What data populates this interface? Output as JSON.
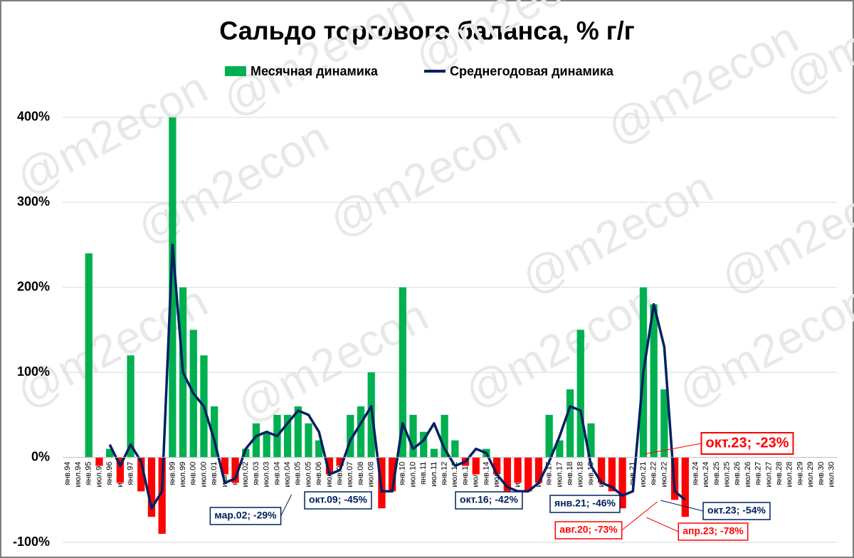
{
  "chart_data": {
    "type": "bar_line",
    "title": "Сальдо торгового баланса, % г/г",
    "watermark": "@m2econ",
    "categories": [
      "янв.94",
      "июл.94",
      "янв.95",
      "июл.95",
      "янв.96",
      "июл.96",
      "янв.97",
      "июл.97",
      "янв.98",
      "июл.98",
      "янв.99",
      "июл.99",
      "янв.00",
      "июл.00",
      "янв.01",
      "июл.01",
      "янв.02",
      "июл.02",
      "янв.03",
      "июл.03",
      "янв.04",
      "июл.04",
      "янв.05",
      "июл.05",
      "янв.06",
      "июл.06",
      "янв.07",
      "июл.07",
      "янв.08",
      "июл.08",
      "янв.09",
      "июл.09",
      "янв.10",
      "июл.10",
      "янв.11",
      "июл.11",
      "янв.12",
      "июл.12",
      "янв.13",
      "июл.13",
      "янв.14",
      "июл.14",
      "янв.15",
      "июл.15",
      "янв.16",
      "июл.16",
      "янв.17",
      "июл.17",
      "янв.18",
      "июл.18",
      "янв.19",
      "июл.19",
      "янв.20",
      "июл.20",
      "янв.21",
      "июл.21",
      "янв.22",
      "июл.22",
      "янв.23",
      "июл.23",
      "янв.24",
      "июл.24",
      "янв.25",
      "июл.25",
      "янв.26",
      "июл.26",
      "янв.27",
      "июл.27",
      "янв.28",
      "июл.28",
      "янв.29",
      "июл.29",
      "янв.30",
      "июл.30"
    ],
    "series": [
      {
        "name": "Месячная динамика",
        "kind": "bar",
        "color": "#00b050",
        "negative_color": "#ff0000",
        "values": [
          null,
          null,
          240,
          -10,
          10,
          -30,
          120,
          -40,
          -70,
          -90,
          400,
          200,
          150,
          120,
          60,
          -20,
          -30,
          10,
          40,
          30,
          50,
          50,
          60,
          40,
          20,
          -20,
          -10,
          50,
          60,
          100,
          -60,
          -40,
          200,
          50,
          30,
          10,
          50,
          20,
          -10,
          -20,
          10,
          -20,
          -40,
          -30,
          -40,
          -30,
          50,
          20,
          80,
          150,
          40,
          -30,
          -40,
          -60,
          0,
          200,
          180,
          80,
          -50,
          -70,
          null,
          null,
          null,
          null,
          null,
          null,
          null,
          null,
          null,
          null,
          null,
          null,
          null,
          null
        ]
      },
      {
        "name": "Среднегодовая динамика",
        "kind": "line",
        "color": "#002060",
        "values": [
          null,
          null,
          null,
          null,
          15,
          -10,
          15,
          -5,
          -60,
          -40,
          250,
          100,
          75,
          60,
          20,
          -30,
          -25,
          10,
          25,
          30,
          25,
          40,
          55,
          50,
          30,
          -20,
          -15,
          20,
          40,
          60,
          -40,
          -40,
          40,
          10,
          20,
          40,
          10,
          -10,
          -5,
          10,
          5,
          -20,
          -35,
          -40,
          -40,
          -30,
          -5,
          25,
          60,
          55,
          -10,
          -30,
          -35,
          -45,
          -40,
          100,
          180,
          130,
          -40,
          -50,
          null,
          null,
          null,
          null,
          null,
          null,
          null,
          null,
          null,
          null,
          null,
          null,
          null,
          null
        ]
      }
    ],
    "ylim": [
      -100,
      420
    ],
    "yticks": [
      {
        "value": -100,
        "label": "-100%"
      },
      {
        "value": 0,
        "label": "0%"
      },
      {
        "value": 100,
        "label": "100%"
      },
      {
        "value": 200,
        "label": "200%"
      },
      {
        "value": 300,
        "label": "300%"
      },
      {
        "value": 400,
        "label": "400%"
      }
    ],
    "grid": true,
    "legend": "top",
    "annotations": [
      {
        "text": "мар.02; -29%",
        "color": "#002060"
      },
      {
        "text": "окт.09; -45%",
        "color": "#002060"
      },
      {
        "text": "окт.16; -42%",
        "color": "#002060"
      },
      {
        "text": "янв.21; -46%",
        "color": "#002060"
      },
      {
        "text": "окт.23; -54%",
        "color": "#002060"
      },
      {
        "text": "авг.20; -73%",
        "color": "#ff0000"
      },
      {
        "text": "апр.23; -78%",
        "color": "#ff0000"
      },
      {
        "text": "окт.23; -23%",
        "color": "#ff0000"
      }
    ]
  }
}
